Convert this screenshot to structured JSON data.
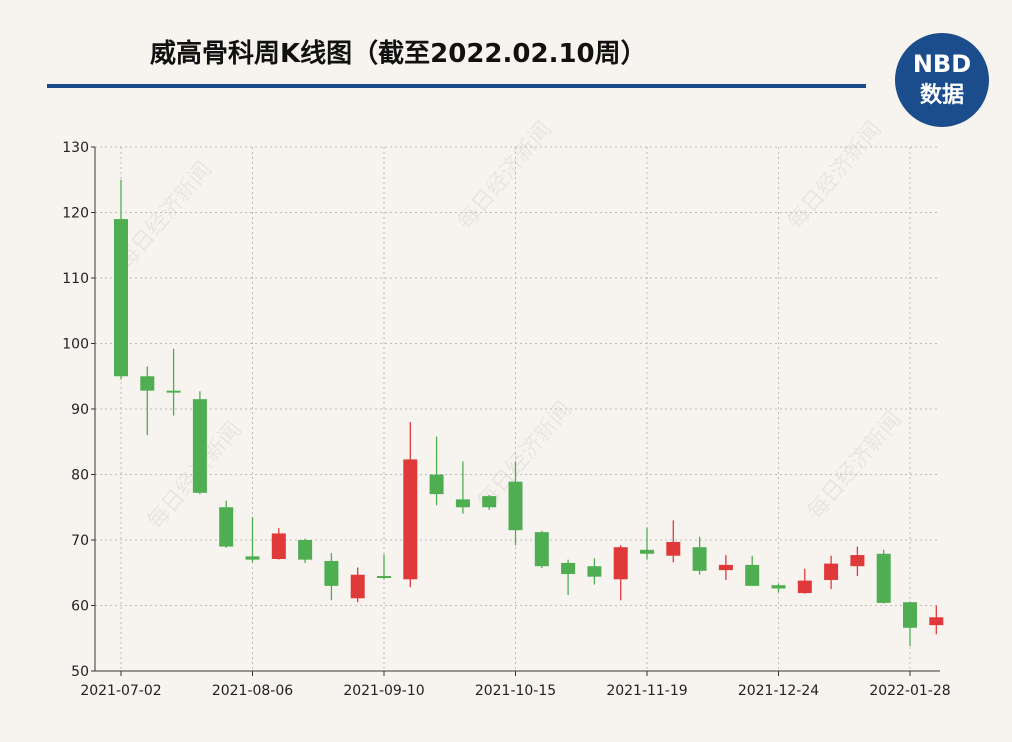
{
  "chart_data": {
    "type": "candlestick",
    "title": "威高骨科周K线图（截至2022.02.10周）",
    "logo": [
      "NBD",
      "数据"
    ],
    "watermark": "每日经济新闻",
    "categories": [
      "2021-07-02",
      null,
      null,
      null,
      null,
      "2021-08-06",
      null,
      null,
      null,
      null,
      "2021-09-10",
      null,
      null,
      null,
      null,
      "2021-10-15",
      null,
      null,
      null,
      null,
      "2021-11-19",
      null,
      null,
      null,
      null,
      "2021-12-24",
      null,
      null,
      null,
      null,
      "2022-01-28",
      null
    ],
    "open": [
      119,
      95,
      92.8,
      91.5,
      75,
      67.5,
      67.1,
      70,
      66.8,
      61.1,
      64.5,
      64,
      80,
      76.2,
      76.7,
      78.9,
      71.2,
      66.5,
      66,
      64,
      68.5,
      67.6,
      68.9,
      65.4,
      66.2,
      63.1,
      61.9,
      63.9,
      66,
      67.9,
      60.5,
      57
    ],
    "high": [
      125,
      96.5,
      99.2,
      92.7,
      76,
      73.5,
      71.8,
      70.2,
      68,
      65.8,
      67.8,
      88,
      85.8,
      82,
      76.9,
      82,
      71.4,
      67,
      67.2,
      69.2,
      71.9,
      73,
      70.5,
      67.7,
      67.6,
      63.3,
      65.6,
      67.6,
      69,
      68.5,
      60.6,
      60
    ],
    "low": [
      94.5,
      86,
      89,
      77,
      68.8,
      66.6,
      67,
      66.5,
      60.8,
      60.5,
      64,
      62.8,
      75.3,
      74,
      74.6,
      69.2,
      65.7,
      61.6,
      63.2,
      60.8,
      67,
      66.6,
      64.7,
      63.9,
      63,
      62,
      61.8,
      62.5,
      64.5,
      60.3,
      53.8,
      55.6
    ],
    "close": [
      95,
      92.8,
      92.5,
      77.2,
      69,
      67,
      71,
      67,
      63,
      64.7,
      64.2,
      82.3,
      77,
      75,
      75,
      71.5,
      66,
      64.8,
      64.4,
      68.9,
      67.9,
      69.7,
      65.3,
      66.2,
      63,
      62.6,
      63.8,
      66.4,
      67.7,
      60.4,
      56.6,
      58.2
    ],
    "up_color": "#e0393a",
    "down_color": "#4fad52",
    "ylim": [
      50,
      130
    ],
    "yticks": [
      50,
      60,
      70,
      80,
      90,
      100,
      110,
      120,
      130
    ],
    "grid": true
  }
}
